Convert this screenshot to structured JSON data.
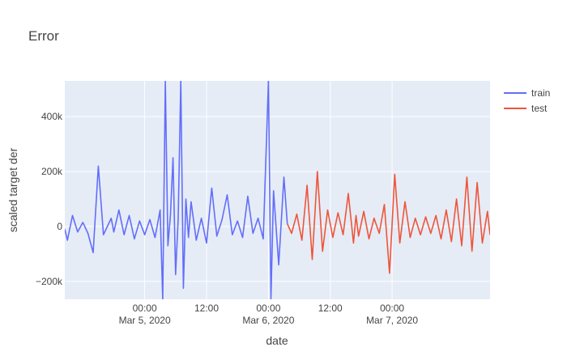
{
  "chart_data": {
    "type": "line",
    "title": "Error",
    "xlabel": "date",
    "ylabel": "scaled target der",
    "xlim": [
      "2020-03-04 08:30",
      "2020-03-07 19:00"
    ],
    "ylim": [
      -265000,
      530000
    ],
    "yticks": [
      {
        "value": -200000,
        "label": "−200k"
      },
      {
        "value": 0,
        "label": "0"
      },
      {
        "value": 200000,
        "label": "200k"
      },
      {
        "value": 400000,
        "label": "400k"
      }
    ],
    "xticks": [
      {
        "value": "2020-03-05 00:00",
        "label": "00:00",
        "sublabel": "Mar 5, 2020"
      },
      {
        "value": "2020-03-05 12:00",
        "label": "12:00",
        "sublabel": ""
      },
      {
        "value": "2020-03-06 00:00",
        "label": "00:00",
        "sublabel": "Mar 6, 2020"
      },
      {
        "value": "2020-03-06 12:00",
        "label": "12:00",
        "sublabel": ""
      },
      {
        "value": "2020-03-07 00:00",
        "label": "00:00",
        "sublabel": "Mar 7, 2020"
      }
    ],
    "grid": true,
    "legend_position": "top-right",
    "series": [
      {
        "name": "train",
        "color": "#636efa",
        "x": [
          "2020-03-04 08:30",
          "2020-03-04 09:00",
          "2020-03-04 10:00",
          "2020-03-04 11:00",
          "2020-03-04 12:00",
          "2020-03-04 13:00",
          "2020-03-04 14:00",
          "2020-03-04 15:00",
          "2020-03-04 16:00",
          "2020-03-04 17:00",
          "2020-03-04 17:30",
          "2020-03-04 18:00",
          "2020-03-04 19:00",
          "2020-03-04 20:00",
          "2020-03-04 21:00",
          "2020-03-04 22:00",
          "2020-03-04 23:00",
          "2020-03-05 00:00",
          "2020-03-05 01:00",
          "2020-03-05 02:00",
          "2020-03-05 03:00",
          "2020-03-05 03:30",
          "2020-03-05 04:00",
          "2020-03-05 04:30",
          "2020-03-05 05:00",
          "2020-03-05 05:30",
          "2020-03-05 06:00",
          "2020-03-05 06:30",
          "2020-03-05 07:00",
          "2020-03-05 07:30",
          "2020-03-05 08:00",
          "2020-03-05 08:30",
          "2020-03-05 09:00",
          "2020-03-05 10:00",
          "2020-03-05 11:00",
          "2020-03-05 12:00",
          "2020-03-05 13:00",
          "2020-03-05 14:00",
          "2020-03-05 15:00",
          "2020-03-05 16:00",
          "2020-03-05 17:00",
          "2020-03-05 18:00",
          "2020-03-05 19:00",
          "2020-03-05 20:00",
          "2020-03-05 21:00",
          "2020-03-05 22:00",
          "2020-03-05 23:00",
          "2020-03-06 00:00",
          "2020-03-06 00:30",
          "2020-03-06 01:00",
          "2020-03-06 02:00",
          "2020-03-06 03:00",
          "2020-03-06 03:40"
        ],
        "y": [
          -10000,
          -50000,
          40000,
          -20000,
          15000,
          -25000,
          -95000,
          220000,
          -30000,
          10000,
          30000,
          -20000,
          60000,
          -30000,
          40000,
          -45000,
          20000,
          -30000,
          25000,
          -40000,
          60000,
          -265000,
          530000,
          -70000,
          45000,
          250000,
          -175000,
          30000,
          530000,
          -225000,
          100000,
          -40000,
          90000,
          -50000,
          30000,
          -60000,
          140000,
          -35000,
          25000,
          115000,
          -30000,
          20000,
          -40000,
          110000,
          -25000,
          30000,
          -45000,
          530000,
          -265000,
          130000,
          -140000,
          180000,
          10000
        ]
      },
      {
        "name": "test",
        "color": "#ef553b",
        "x": [
          "2020-03-06 03:40",
          "2020-03-06 04:30",
          "2020-03-06 05:30",
          "2020-03-06 06:30",
          "2020-03-06 07:30",
          "2020-03-06 08:30",
          "2020-03-06 09:30",
          "2020-03-06 10:30",
          "2020-03-06 11:30",
          "2020-03-06 12:30",
          "2020-03-06 13:30",
          "2020-03-06 14:30",
          "2020-03-06 15:30",
          "2020-03-06 16:30",
          "2020-03-06 17:00",
          "2020-03-06 17:30",
          "2020-03-06 18:30",
          "2020-03-06 19:30",
          "2020-03-06 20:30",
          "2020-03-06 21:30",
          "2020-03-06 22:30",
          "2020-03-06 23:30",
          "2020-03-07 00:30",
          "2020-03-07 01:30",
          "2020-03-07 02:30",
          "2020-03-07 03:30",
          "2020-03-07 04:30",
          "2020-03-07 05:30",
          "2020-03-07 06:30",
          "2020-03-07 07:30",
          "2020-03-07 08:30",
          "2020-03-07 09:30",
          "2020-03-07 10:30",
          "2020-03-07 11:30",
          "2020-03-07 12:30",
          "2020-03-07 13:30",
          "2020-03-07 14:30",
          "2020-03-07 15:30",
          "2020-03-07 16:30",
          "2020-03-07 17:30",
          "2020-03-07 18:30",
          "2020-03-07 19:00"
        ],
        "y": [
          10000,
          -25000,
          45000,
          -50000,
          150000,
          -120000,
          200000,
          -90000,
          60000,
          -40000,
          50000,
          -30000,
          120000,
          -60000,
          40000,
          -35000,
          55000,
          -45000,
          30000,
          -25000,
          80000,
          -170000,
          190000,
          -60000,
          90000,
          -40000,
          30000,
          -30000,
          35000,
          -25000,
          40000,
          -45000,
          60000,
          -55000,
          100000,
          -70000,
          180000,
          -90000,
          160000,
          -60000,
          55000,
          -30000
        ]
      }
    ]
  }
}
